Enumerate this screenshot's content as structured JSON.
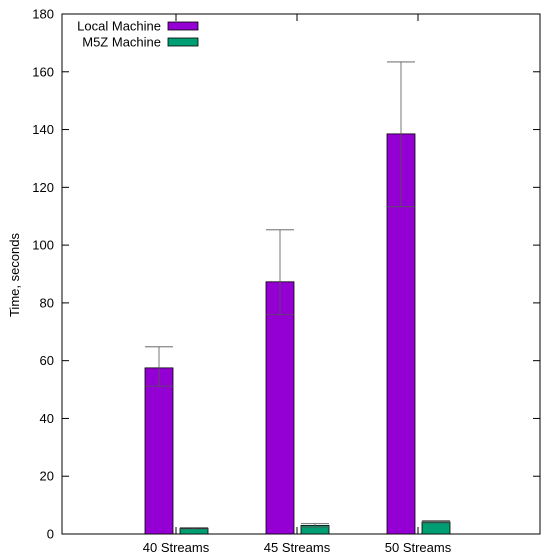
{
  "chart_data": {
    "type": "bar",
    "title": "",
    "xlabel": "",
    "ylabel": "Time, seconds",
    "ylim": [
      0,
      180
    ],
    "yticks": [
      0,
      20,
      40,
      60,
      80,
      100,
      120,
      140,
      160,
      180
    ],
    "categories": [
      "40 Streams",
      "45 Streams",
      "50 Streams"
    ],
    "series": [
      {
        "name": "Local Machine",
        "color": "#9400d3",
        "values": [
          57.5,
          87.3,
          138.5
        ],
        "err_low": [
          51.2,
          75.9,
          113.3
        ],
        "err_high": [
          64.8,
          105.3,
          163.4
        ]
      },
      {
        "name": "M5Z Machine",
        "color": "#009e73",
        "values": [
          2.0,
          3.0,
          4.2
        ],
        "err_low": [
          1.8,
          2.4,
          3.8
        ],
        "err_high": [
          2.2,
          3.6,
          4.6
        ]
      }
    ],
    "legend_position": "top-left",
    "grid": false
  }
}
